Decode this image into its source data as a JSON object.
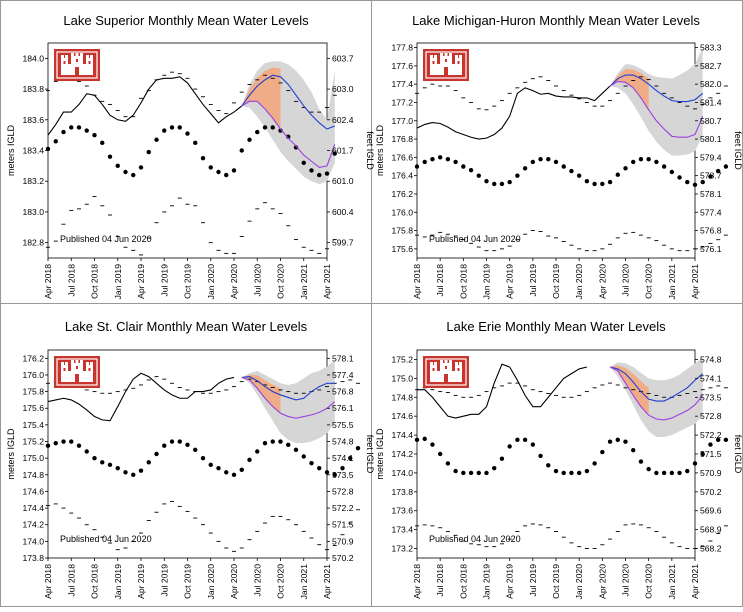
{
  "colors": {
    "frame": "#999999",
    "observed": "#000000",
    "forecast_mean": "#1f3fd0",
    "forecast_low": "#9b40e0",
    "forecast_range": "#d6d6d6",
    "forecast_early": "#f2a77d",
    "logo": "#c8352e"
  },
  "icons": [
    "usace-castle-icon"
  ],
  "x_tick_labels": [
    "Apr 2018",
    "Jul 2018",
    "Oct 2018",
    "Jan 2019",
    "Apr 2019",
    "Jul 2019",
    "Oct 2019",
    "Jan 2020",
    "Apr 2020",
    "Jul 2020",
    "Oct 2020",
    "Jan 2021",
    "Apr 2021"
  ],
  "chart_data": [
    {
      "type": "line",
      "title": "Lake Superior Monthly Mean Water Levels",
      "ylabel": "meters IGLD",
      "y2label": "feet IGLD",
      "published": "Published 04 Jun 2020",
      "ylim": [
        182.7,
        184.1
      ],
      "left_ticks": [
        "184.0",
        "183.8",
        "183.6",
        "183.4",
        "183.2",
        "183.0",
        "182.8"
      ],
      "left_tick_values": [
        184.0,
        183.8,
        183.6,
        183.4,
        183.2,
        183.0,
        182.8
      ],
      "right_ticks": [
        "603.7",
        "603.0",
        "602.4",
        "601.7",
        "601.0",
        "600.4",
        "599.7"
      ],
      "x_start": "2018-04",
      "observed": [
        183.5,
        183.57,
        183.65,
        183.65,
        183.7,
        183.77,
        183.76,
        183.7,
        183.63,
        183.6,
        183.59,
        183.63,
        183.71,
        183.8,
        183.86,
        183.87,
        183.87,
        183.88,
        183.84,
        183.77,
        183.7,
        183.64,
        183.58,
        183.62,
        183.65,
        183.69
      ],
      "forecast_start": "2020-05",
      "forecast_mean": [
        183.69,
        183.76,
        183.82,
        183.86,
        183.89,
        183.88,
        183.83,
        183.76,
        183.69,
        183.63,
        183.58,
        183.54,
        183.56
      ],
      "forecast_low": [
        183.69,
        183.72,
        183.72,
        183.67,
        183.61,
        183.54,
        183.48,
        183.43,
        183.37,
        183.33,
        183.29,
        183.3,
        183.44
      ],
      "range_high": [
        183.69,
        183.83,
        183.92,
        183.97,
        183.98,
        183.98,
        183.96,
        183.92,
        183.86,
        183.78,
        183.67,
        183.6,
        183.92
      ],
      "range_low": [
        183.69,
        183.68,
        183.62,
        183.55,
        183.47,
        183.39,
        183.33,
        183.28,
        183.23,
        183.2,
        183.18,
        183.2,
        183.32
      ],
      "long_term_mean": [
        183.41,
        183.46,
        183.52,
        183.55,
        183.55,
        183.53,
        183.5,
        183.45,
        183.36,
        183.3,
        183.26,
        183.24,
        183.29,
        183.39,
        183.47,
        183.53,
        183.55,
        183.55,
        183.51,
        183.45,
        183.35,
        183.29,
        183.26,
        183.24,
        183.27,
        183.4,
        183.47,
        183.52,
        183.55,
        183.55,
        183.53,
        183.49,
        183.42,
        183.32,
        183.27,
        183.24,
        183.25,
        183.38
      ],
      "record_high": [
        183.79,
        183.85,
        183.87,
        183.88,
        183.85,
        183.82,
        183.76,
        183.72,
        183.7,
        183.66,
        183.62,
        183.62,
        183.74,
        183.79,
        183.86,
        183.89,
        183.91,
        183.9,
        183.87,
        183.8,
        183.75,
        183.7,
        183.66,
        183.64,
        183.71,
        183.78,
        183.83,
        183.86,
        183.89,
        183.87,
        183.84,
        183.79,
        183.72,
        183.68,
        183.65,
        183.65,
        183.68,
        183.76
      ],
      "record_low": [
        182.77,
        182.81,
        182.92,
        183.01,
        183.02,
        183.05,
        183.1,
        183.04,
        182.98,
        182.84,
        182.77,
        182.75,
        182.72,
        182.83,
        182.93,
        183.0,
        183.04,
        183.09,
        183.05,
        183.04,
        182.93,
        182.8,
        182.75,
        182.73,
        182.73,
        182.84,
        182.94,
        183.02,
        183.06,
        183.02,
        182.99,
        182.91,
        182.82,
        182.77,
        182.75,
        182.73,
        182.76,
        182.82
      ]
    },
    {
      "type": "line",
      "title": "Lake Michigan-Huron Monthly Mean Water Levels",
      "ylabel": "meters IGLD",
      "y2label": "feet IGLD",
      "published": "Published 04 Jun 2020",
      "ylim": [
        175.5,
        177.85
      ],
      "left_ticks": [
        "177.8",
        "177.6",
        "177.4",
        "177.2",
        "177.0",
        "176.8",
        "176.6",
        "176.4",
        "176.2",
        "176.0",
        "175.8",
        "175.6"
      ],
      "left_tick_values": [
        177.8,
        177.6,
        177.4,
        177.2,
        177.0,
        176.8,
        176.6,
        176.4,
        176.2,
        176.0,
        175.8,
        175.6
      ],
      "right_ticks": [
        "583.3",
        "582.7",
        "582.0",
        "581.4",
        "580.7",
        "580.1",
        "579.4",
        "578.7",
        "578.1",
        "577.4",
        "576.8",
        "576.1"
      ],
      "x_start": "2018-04",
      "observed": [
        176.92,
        176.96,
        176.98,
        176.97,
        176.93,
        176.88,
        176.85,
        176.82,
        176.8,
        176.81,
        176.85,
        176.92,
        177.05,
        177.3,
        177.36,
        177.33,
        177.29,
        177.3,
        177.27,
        177.26,
        177.26,
        177.25,
        177.25,
        177.22,
        177.3,
        177.38
      ],
      "forecast_start": "2020-05",
      "forecast_mean": [
        177.38,
        177.46,
        177.5,
        177.5,
        177.46,
        177.4,
        177.33,
        177.27,
        177.22,
        177.21,
        177.21,
        177.23,
        177.3
      ],
      "forecast_low": [
        177.38,
        177.43,
        177.42,
        177.36,
        177.25,
        177.12,
        177.0,
        176.91,
        176.83,
        176.82,
        176.82,
        176.85,
        177.05
      ],
      "range_high": [
        177.38,
        177.52,
        177.62,
        177.61,
        177.57,
        177.51,
        177.48,
        177.47,
        177.46,
        177.5,
        177.55,
        177.62,
        177.8
      ],
      "range_low": [
        177.38,
        177.36,
        177.3,
        177.18,
        177.04,
        176.89,
        176.77,
        176.68,
        176.62,
        176.62,
        176.63,
        176.67,
        176.84
      ],
      "long_term_mean": [
        176.5,
        176.55,
        176.58,
        176.6,
        176.58,
        176.55,
        176.5,
        176.46,
        176.4,
        176.34,
        176.31,
        176.31,
        176.33,
        176.4,
        176.48,
        176.55,
        176.58,
        176.58,
        176.55,
        176.5,
        176.45,
        176.4,
        176.34,
        176.31,
        176.31,
        176.33,
        176.41,
        176.48,
        176.55,
        176.58,
        176.58,
        176.55,
        176.5,
        176.44,
        176.38,
        176.33,
        176.3,
        176.33,
        176.39,
        176.45,
        176.5
      ],
      "record_high": [
        177.3,
        177.36,
        177.4,
        177.38,
        177.38,
        177.33,
        177.25,
        177.2,
        177.13,
        177.12,
        177.16,
        177.22,
        177.3,
        177.36,
        177.42,
        177.46,
        177.48,
        177.44,
        177.38,
        177.33,
        177.28,
        177.24,
        177.2,
        177.16,
        177.16,
        177.22,
        177.3,
        177.38,
        177.44,
        177.48,
        177.45,
        177.38,
        177.3,
        177.25,
        177.2,
        177.16,
        177.13,
        177.18,
        177.25,
        177.3,
        177.38
      ],
      "record_low": [
        175.75,
        175.73,
        175.75,
        175.78,
        175.76,
        175.74,
        175.7,
        175.66,
        175.62,
        175.58,
        175.58,
        175.6,
        175.63,
        175.7,
        175.76,
        175.8,
        175.79,
        175.74,
        175.72,
        175.68,
        175.64,
        175.6,
        175.58,
        175.58,
        175.6,
        175.65,
        175.72,
        175.77,
        175.78,
        175.75,
        175.72,
        175.69,
        175.64,
        175.6,
        175.58,
        175.58,
        175.6,
        175.62,
        175.66,
        175.7,
        175.75
      ]
    },
    {
      "type": "line",
      "title": "Lake St. Clair Monthly Mean Water Levels",
      "ylabel": "meters IGLD",
      "y2label": "feet IGLD",
      "published": "Published 04 Jun 2020",
      "ylim": [
        173.8,
        176.3
      ],
      "left_ticks": [
        "176.2",
        "176.0",
        "175.8",
        "175.6",
        "175.4",
        "175.2",
        "175.0",
        "174.8",
        "174.6",
        "174.4",
        "174.2",
        "174.0",
        "173.8"
      ],
      "left_tick_values": [
        176.2,
        176.0,
        175.8,
        175.6,
        175.4,
        175.2,
        175.0,
        174.8,
        174.6,
        174.4,
        174.2,
        174.0,
        173.8
      ],
      "right_ticks": [
        "578.1",
        "577.4",
        "576.8",
        "576.1",
        "575.5",
        "574.8",
        "574.1",
        "573.5",
        "572.8",
        "572.2",
        "571.5",
        "570.9",
        "570.2"
      ],
      "x_start": "2018-04",
      "observed": [
        175.68,
        175.7,
        175.72,
        175.7,
        175.65,
        175.58,
        175.5,
        175.46,
        175.45,
        175.62,
        175.8,
        175.95,
        176.02,
        175.98,
        175.9,
        175.82,
        175.76,
        175.72,
        175.72,
        175.8,
        175.8,
        175.82,
        175.9,
        175.95,
        175.97
      ],
      "forecast_start": "2020-05",
      "forecast_mean": [
        175.97,
        175.98,
        175.93,
        175.86,
        175.8,
        175.76,
        175.73,
        175.7,
        175.72,
        175.8,
        175.86,
        175.9,
        175.9
      ],
      "forecast_low": [
        175.97,
        175.94,
        175.84,
        175.72,
        175.62,
        175.54,
        175.5,
        175.48,
        175.5,
        175.52,
        175.55,
        175.6,
        175.68
      ],
      "range_high": [
        175.97,
        176.02,
        176.05,
        176.0,
        175.95,
        175.9,
        175.88,
        175.9,
        175.96,
        176.02,
        176.05,
        176.1,
        176.18
      ],
      "range_low": [
        175.97,
        175.9,
        175.76,
        175.6,
        175.45,
        175.3,
        175.22,
        175.18,
        175.18,
        175.2,
        175.24,
        175.3,
        175.42
      ],
      "long_term_mean": [
        175.15,
        175.18,
        175.2,
        175.2,
        175.15,
        175.08,
        175.0,
        174.95,
        174.92,
        174.88,
        174.83,
        174.8,
        174.85,
        174.95,
        175.05,
        175.15,
        175.2,
        175.2,
        175.16,
        175.1,
        175.0,
        174.92,
        174.88,
        174.83,
        174.8,
        174.86,
        174.98,
        175.08,
        175.18,
        175.2,
        175.2,
        175.16,
        175.1,
        175.02,
        174.94,
        174.88,
        174.83,
        174.8,
        174.88,
        175.0,
        175.12
      ],
      "record_high": [
        175.9,
        175.92,
        175.95,
        175.92,
        175.88,
        175.82,
        175.8,
        175.78,
        175.78,
        175.8,
        175.82,
        175.84,
        175.88,
        175.94,
        175.98,
        175.95,
        175.9,
        175.85,
        175.82,
        175.8,
        175.78,
        175.78,
        175.8,
        175.82,
        175.86,
        175.92,
        175.95,
        175.92,
        175.88,
        175.85,
        175.82,
        175.8,
        175.78,
        175.78,
        175.8,
        175.82,
        175.86,
        175.9,
        175.92,
        175.94,
        175.9
      ],
      "record_low": [
        174.43,
        174.45,
        174.4,
        174.34,
        174.28,
        174.2,
        174.14,
        174.05,
        173.98,
        173.9,
        173.92,
        174.0,
        174.1,
        174.25,
        174.35,
        174.45,
        174.48,
        174.42,
        174.36,
        174.28,
        174.2,
        174.1,
        174.0,
        173.92,
        173.88,
        173.92,
        174.02,
        174.12,
        174.22,
        174.3,
        174.3,
        174.26,
        174.2,
        174.12,
        174.04,
        173.96,
        173.9,
        173.95,
        174.08,
        174.22,
        174.38
      ]
    },
    {
      "type": "line",
      "title": "Lake Erie Monthly Mean Water Levels",
      "ylabel": "meters IGLD",
      "y2label": "feet IGLD",
      "published": "Published 04 Jun 2020",
      "ylim": [
        173.1,
        175.3
      ],
      "left_ticks": [
        "175.2",
        "175.0",
        "174.8",
        "174.6",
        "174.4",
        "174.2",
        "174.0",
        "173.8",
        "173.6",
        "173.4",
        "173.2"
      ],
      "left_tick_values": [
        175.2,
        175.0,
        174.8,
        174.6,
        174.4,
        174.2,
        174.0,
        173.8,
        173.6,
        173.4,
        173.2
      ],
      "right_ticks": [
        "574.8",
        "574.1",
        "573.5",
        "572.8",
        "572.2",
        "571.5",
        "570.9",
        "570.2",
        "569.6",
        "568.9",
        "568.2"
      ],
      "x_start": "2018-04",
      "observed": [
        174.88,
        174.88,
        174.8,
        174.7,
        174.6,
        174.58,
        174.6,
        174.62,
        174.62,
        174.7,
        174.95,
        175.15,
        175.12,
        174.98,
        174.82,
        174.7,
        174.7,
        174.8,
        174.9,
        175.0,
        175.05,
        175.1,
        175.12
      ],
      "forecast_start": "2020-05",
      "forecast_mean": [
        175.12,
        175.1,
        175.05,
        174.96,
        174.86,
        174.78,
        174.76,
        174.76,
        174.8,
        174.85,
        174.9,
        174.98,
        175.05
      ],
      "forecast_low": [
        175.12,
        175.08,
        174.95,
        174.82,
        174.7,
        174.61,
        174.57,
        174.56,
        174.58,
        174.62,
        174.66,
        174.72,
        174.82
      ],
      "range_high": [
        175.12,
        175.17,
        175.16,
        175.12,
        175.06,
        175.0,
        174.98,
        174.98,
        175.0,
        175.04,
        175.1,
        175.16,
        175.22
      ],
      "range_low": [
        175.12,
        175.02,
        174.88,
        174.72,
        174.56,
        174.44,
        174.38,
        174.38,
        174.4,
        174.44,
        174.48,
        174.52,
        174.6
      ],
      "long_term_mean": [
        174.35,
        174.36,
        174.3,
        174.2,
        174.1,
        174.02,
        174.0,
        174.0,
        174.0,
        174.0,
        174.05,
        174.15,
        174.28,
        174.35,
        174.35,
        174.3,
        174.18,
        174.08,
        174.02,
        174.0,
        174.0,
        174.0,
        174.02,
        174.1,
        174.22,
        174.33,
        174.35,
        174.33,
        174.24,
        174.12,
        174.04,
        174.0,
        174.0,
        174.0,
        174.0,
        174.02,
        174.1,
        174.2,
        174.3,
        174.35,
        174.35
      ],
      "record_high": [
        174.88,
        174.9,
        174.88,
        174.86,
        174.85,
        174.82,
        174.8,
        174.8,
        174.82,
        174.86,
        174.9,
        174.92,
        174.95,
        174.95,
        174.92,
        174.88,
        174.86,
        174.84,
        174.82,
        174.8,
        174.8,
        174.82,
        174.86,
        174.9,
        174.93,
        174.95,
        174.93,
        174.9,
        174.88,
        174.86,
        174.84,
        174.82,
        174.8,
        174.8,
        174.82,
        174.84,
        174.86,
        174.88,
        174.9,
        174.92,
        174.9
      ],
      "record_low": [
        173.44,
        173.45,
        173.44,
        173.42,
        173.38,
        173.34,
        173.28,
        173.25,
        173.24,
        173.22,
        173.22,
        173.25,
        173.3,
        173.38,
        173.44,
        173.46,
        173.45,
        173.42,
        173.38,
        173.32,
        173.26,
        173.22,
        173.2,
        173.2,
        173.24,
        173.3,
        173.38,
        173.45,
        173.46,
        173.45,
        173.42,
        173.38,
        173.32,
        173.26,
        173.22,
        173.2,
        173.2,
        173.22,
        173.28,
        173.36,
        173.44
      ]
    }
  ]
}
